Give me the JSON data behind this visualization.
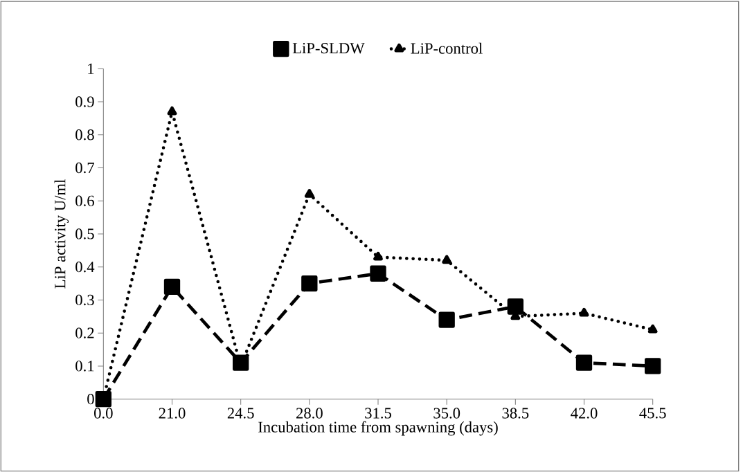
{
  "chart_data": {
    "type": "line",
    "xlabel": "Incubation  time from spawning (days)",
    "ylabel": "LiP activity U/ml",
    "categories": [
      "0.0",
      "21.0",
      "24.5",
      "28.0",
      "31.5",
      "35.0",
      "38.5",
      "42.0",
      "45.5"
    ],
    "series": [
      {
        "name": "LiP-SLDW",
        "color": "#000000",
        "marker": "square",
        "line_style": "dashed",
        "values": [
          0,
          0.34,
          0.11,
          0.35,
          0.38,
          0.24,
          0.28,
          0.11,
          0.1
        ]
      },
      {
        "name": "LiP-control",
        "color": "#000000",
        "marker": "triangle",
        "line_style": "dotted",
        "values": [
          0,
          0.87,
          0.1,
          0.62,
          0.43,
          0.42,
          0.25,
          0.26,
          0.21
        ]
      }
    ],
    "ylim": [
      0,
      1
    ],
    "yticks": [
      0,
      0.1,
      0.2,
      0.3,
      0.4,
      0.5,
      0.6,
      0.7,
      0.8,
      0.9,
      1
    ],
    "grid": false,
    "legend": "top"
  }
}
